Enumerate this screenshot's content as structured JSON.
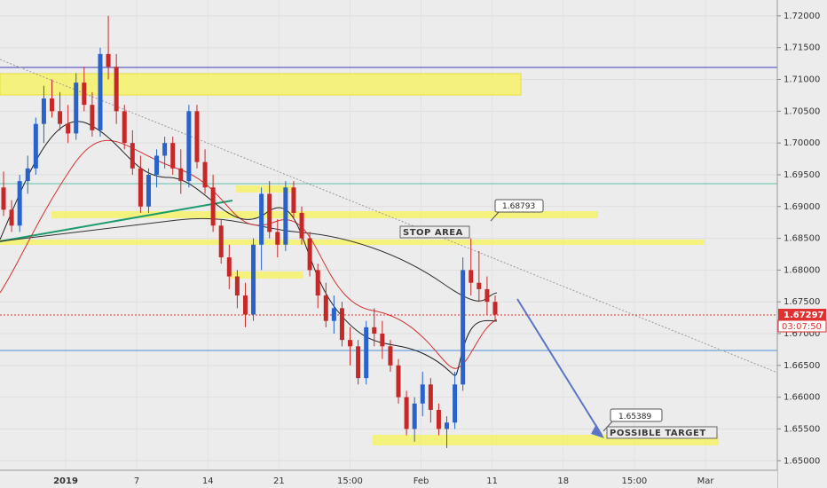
{
  "chart_data": {
    "type": "candlestick",
    "price_axis": {
      "ticks": [
        "1.72000",
        "1.71500",
        "1.71000",
        "1.70500",
        "1.70000",
        "1.69500",
        "1.69000",
        "1.68500",
        "1.68000",
        "1.67500",
        "1.67000",
        "1.66500",
        "1.66000",
        "1.65500",
        "1.65000"
      ],
      "range": [
        1.6485,
        1.7225
      ]
    },
    "time_axis": {
      "ticks": [
        "2019",
        "7",
        "14",
        "21",
        "15:00",
        "Feb",
        "11",
        "18",
        "15:00",
        "Mar"
      ]
    },
    "last_price": "1.67297",
    "countdown": "03:07:50",
    "annotations": {
      "stop_area": "STOP AREA",
      "stop_level": "1.68793",
      "possible_target": "POSSIBLE TARGET",
      "target_level": "1.65389"
    },
    "candles": [
      [
        1.693,
        1.6955,
        1.6885,
        1.6895
      ],
      [
        1.6895,
        1.691,
        1.686,
        1.687
      ],
      [
        1.687,
        1.695,
        1.686,
        1.694
      ],
      [
        1.694,
        1.698,
        1.692,
        1.696
      ],
      [
        1.696,
        1.704,
        1.695,
        1.703
      ],
      [
        1.703,
        1.709,
        1.7,
        1.707
      ],
      [
        1.707,
        1.71,
        1.704,
        1.705
      ],
      [
        1.705,
        1.708,
        1.702,
        1.703
      ],
      [
        1.703,
        1.706,
        1.7,
        1.7015
      ],
      [
        1.7015,
        1.711,
        1.7005,
        1.7095
      ],
      [
        1.7095,
        1.712,
        1.705,
        1.706
      ],
      [
        1.706,
        1.708,
        1.701,
        1.702
      ],
      [
        1.702,
        1.715,
        1.701,
        1.714
      ],
      [
        1.714,
        1.72,
        1.71,
        1.712
      ],
      [
        1.712,
        1.714,
        1.703,
        1.705
      ],
      [
        1.705,
        1.706,
        1.699,
        1.7
      ],
      [
        1.7,
        1.702,
        1.695,
        1.696
      ],
      [
        1.696,
        1.698,
        1.689,
        1.69
      ],
      [
        1.69,
        1.696,
        1.689,
        1.695
      ],
      [
        1.695,
        1.699,
        1.693,
        1.698
      ],
      [
        1.698,
        1.701,
        1.696,
        1.7
      ],
      [
        1.7,
        1.701,
        1.695,
        1.696
      ],
      [
        1.696,
        1.699,
        1.692,
        1.694
      ],
      [
        1.694,
        1.706,
        1.693,
        1.705
      ],
      [
        1.705,
        1.706,
        1.696,
        1.697
      ],
      [
        1.697,
        1.699,
        1.692,
        1.693
      ],
      [
        1.693,
        1.695,
        1.686,
        1.687
      ],
      [
        1.687,
        1.688,
        1.681,
        1.682
      ],
      [
        1.682,
        1.684,
        1.677,
        1.679
      ],
      [
        1.679,
        1.68,
        1.674,
        1.676
      ],
      [
        1.676,
        1.678,
        1.671,
        1.673
      ],
      [
        1.673,
        1.685,
        1.672,
        1.684
      ],
      [
        1.684,
        1.693,
        1.68,
        1.692
      ],
      [
        1.692,
        1.694,
        1.685,
        1.686
      ],
      [
        1.686,
        1.688,
        1.682,
        1.684
      ],
      [
        1.684,
        1.694,
        1.683,
        1.693
      ],
      [
        1.693,
        1.694,
        1.688,
        1.689
      ],
      [
        1.689,
        1.69,
        1.684,
        1.685
      ],
      [
        1.685,
        1.686,
        1.679,
        1.68
      ],
      [
        1.68,
        1.681,
        1.674,
        1.676
      ],
      [
        1.676,
        1.678,
        1.671,
        1.672
      ],
      [
        1.672,
        1.676,
        1.67,
        1.674
      ],
      [
        1.674,
        1.675,
        1.668,
        1.669
      ],
      [
        1.669,
        1.671,
        1.665,
        1.668
      ],
      [
        1.668,
        1.669,
        1.662,
        1.663
      ],
      [
        1.663,
        1.672,
        1.662,
        1.671
      ],
      [
        1.671,
        1.674,
        1.668,
        1.67
      ],
      [
        1.67,
        1.672,
        1.666,
        1.668
      ],
      [
        1.668,
        1.669,
        1.664,
        1.665
      ],
      [
        1.665,
        1.666,
        1.659,
        1.66
      ],
      [
        1.66,
        1.661,
        1.654,
        1.655
      ],
      [
        1.655,
        1.66,
        1.653,
        1.659
      ],
      [
        1.659,
        1.664,
        1.657,
        1.662
      ],
      [
        1.662,
        1.663,
        1.656,
        1.658
      ],
      [
        1.658,
        1.659,
        1.654,
        1.655
      ],
      [
        1.655,
        1.657,
        1.652,
        1.656
      ],
      [
        1.656,
        1.664,
        1.655,
        1.662
      ],
      [
        1.662,
        1.682,
        1.661,
        1.68
      ],
      [
        1.68,
        1.685,
        1.676,
        1.678
      ],
      [
        1.678,
        1.683,
        1.675,
        1.677
      ],
      [
        1.677,
        1.679,
        1.673,
        1.675
      ],
      [
        1.675,
        1.676,
        1.672,
        1.673
      ]
    ]
  }
}
